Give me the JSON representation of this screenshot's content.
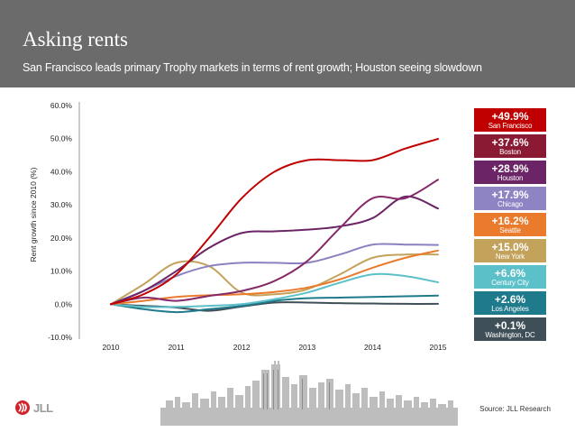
{
  "header": {
    "title": "Asking rents",
    "subtitle": "San Francisco leads primary Trophy markets in terms of rent growth; Houston seeing slowdown"
  },
  "chart_data": {
    "type": "line",
    "title": "Asking rents",
    "ylabel": "Rent growth since 2010 (%)",
    "xlabel": "",
    "ylim": [
      -10,
      60
    ],
    "xlim": [
      2010,
      2015
    ],
    "yticks": [
      60,
      50,
      40,
      30,
      20,
      10,
      0,
      -10
    ],
    "ytick_labels": [
      "60.0%",
      "50.0%",
      "40.0%",
      "30.0%",
      "20.0%",
      "10.0%",
      "0.0%",
      "-10.0%"
    ],
    "xticks": [
      2010,
      2011,
      2012,
      2013,
      2014,
      2015
    ],
    "xtick_labels": [
      "2010",
      "2011",
      "2012",
      "2013",
      "2014",
      "2015"
    ],
    "series": [
      {
        "name": "San Francisco",
        "color": "#c00000",
        "final": "+49.9%",
        "points": [
          [
            2010,
            0
          ],
          [
            2010.5,
            3
          ],
          [
            2011,
            9
          ],
          [
            2011.5,
            20
          ],
          [
            2012,
            32
          ],
          [
            2012.5,
            40
          ],
          [
            2013,
            43.5
          ],
          [
            2013.5,
            43.5
          ],
          [
            2014,
            43.5
          ],
          [
            2014.5,
            47
          ],
          [
            2015,
            49.9
          ]
        ]
      },
      {
        "name": "Boston",
        "color": "#862a6a",
        "final": "+37.6%",
        "points": [
          [
            2010,
            0
          ],
          [
            2010.5,
            2
          ],
          [
            2011,
            1
          ],
          [
            2011.5,
            2.5
          ],
          [
            2012,
            4
          ],
          [
            2012.5,
            7
          ],
          [
            2013,
            13
          ],
          [
            2013.5,
            23
          ],
          [
            2014,
            32
          ],
          [
            2014.5,
            32
          ],
          [
            2015,
            37.6
          ]
        ]
      },
      {
        "name": "Houston",
        "color": "#6b2566",
        "final": "+28.9%",
        "points": [
          [
            2010,
            0
          ],
          [
            2010.5,
            4
          ],
          [
            2011,
            10
          ],
          [
            2011.5,
            17
          ],
          [
            2012,
            21.5
          ],
          [
            2012.5,
            22
          ],
          [
            2013,
            22.5
          ],
          [
            2013.5,
            23.5
          ],
          [
            2014,
            26
          ],
          [
            2014.5,
            32.5
          ],
          [
            2015,
            28.9
          ]
        ]
      },
      {
        "name": "Chicago",
        "color": "#8b80c0",
        "final": "+17.9%",
        "points": [
          [
            2010,
            0
          ],
          [
            2010.5,
            4
          ],
          [
            2011,
            8.5
          ],
          [
            2011.5,
            11.5
          ],
          [
            2012,
            12.5
          ],
          [
            2012.5,
            12.5
          ],
          [
            2013,
            12.5
          ],
          [
            2013.5,
            15
          ],
          [
            2014,
            18
          ],
          [
            2014.5,
            18
          ],
          [
            2015,
            17.9
          ]
        ]
      },
      {
        "name": "Seattle",
        "color": "#ea7a2c",
        "final": "+16.2%",
        "points": [
          [
            2010,
            0
          ],
          [
            2010.5,
            1
          ],
          [
            2011,
            2.2
          ],
          [
            2011.5,
            2.7
          ],
          [
            2012,
            3
          ],
          [
            2012.5,
            3.7
          ],
          [
            2013,
            5
          ],
          [
            2013.5,
            7.5
          ],
          [
            2014,
            11
          ],
          [
            2014.5,
            14
          ],
          [
            2015,
            16.2
          ]
        ]
      },
      {
        "name": "New York",
        "color": "#c3a35c",
        "final": "+15.0%",
        "points": [
          [
            2010,
            0
          ],
          [
            2010.5,
            6
          ],
          [
            2011,
            12.5
          ],
          [
            2011.5,
            11.5
          ],
          [
            2012,
            3.5
          ],
          [
            2012.5,
            3
          ],
          [
            2013,
            4.5
          ],
          [
            2013.5,
            9
          ],
          [
            2014,
            14
          ],
          [
            2014.5,
            15
          ],
          [
            2015,
            15.0
          ]
        ]
      },
      {
        "name": "Century City",
        "color": "#5bc0c8",
        "final": "+6.6%",
        "points": [
          [
            2010,
            0
          ],
          [
            2010.5,
            -0.8
          ],
          [
            2011,
            -0.8
          ],
          [
            2011.5,
            -0.5
          ],
          [
            2012,
            0
          ],
          [
            2012.5,
            1.5
          ],
          [
            2013,
            3.5
          ],
          [
            2013.5,
            6.5
          ],
          [
            2014,
            9
          ],
          [
            2014.5,
            8.5
          ],
          [
            2015,
            6.6
          ]
        ]
      },
      {
        "name": "Los Angeles",
        "color": "#1f7a8c",
        "final": "+2.6%",
        "points": [
          [
            2010,
            0
          ],
          [
            2010.5,
            -1.5
          ],
          [
            2011,
            -2.4
          ],
          [
            2011.5,
            -1.5
          ],
          [
            2012,
            -0.5
          ],
          [
            2012.5,
            1
          ],
          [
            2013,
            1.8
          ],
          [
            2013.5,
            2
          ],
          [
            2014,
            2.2
          ],
          [
            2014.5,
            2.4
          ],
          [
            2015,
            2.6
          ]
        ]
      },
      {
        "name": "Washington, DC",
        "color": "#3f4f58",
        "final": "+0.1%",
        "points": [
          [
            2010,
            0
          ],
          [
            2010.5,
            -0.5
          ],
          [
            2011,
            -1
          ],
          [
            2011.5,
            -2
          ],
          [
            2012,
            -0.7
          ],
          [
            2012.5,
            0.5
          ],
          [
            2013,
            0.5
          ],
          [
            2013.5,
            0.3
          ],
          [
            2014,
            0.2
          ],
          [
            2014.5,
            0.1
          ],
          [
            2015,
            0.1
          ]
        ]
      }
    ]
  },
  "legend": [
    {
      "value": "+49.9%",
      "city": "San Francisco",
      "color": "#c00000"
    },
    {
      "value": "+37.6%",
      "city": "Boston",
      "color": "#8a1a34"
    },
    {
      "value": "+28.9%",
      "city": "Houston",
      "color": "#6b2566"
    },
    {
      "value": "+17.9%",
      "city": "Chicago",
      "color": "#8e84c4"
    },
    {
      "value": "+16.2%",
      "city": "Seattle",
      "color": "#ea7a2c"
    },
    {
      "value": "+15.0%",
      "city": "New York",
      "color": "#c3a35c"
    },
    {
      "value": "+6.6%",
      "city": "Century City",
      "color": "#5bc0c8"
    },
    {
      "value": "+2.6%",
      "city": "Los Angeles",
      "color": "#1f7a8c"
    },
    {
      "value": "+0.1%",
      "city": "Washington, DC",
      "color": "#3f4f58"
    }
  ],
  "footer": {
    "logo_text": "JLL",
    "source": "Source: JLL Research"
  }
}
